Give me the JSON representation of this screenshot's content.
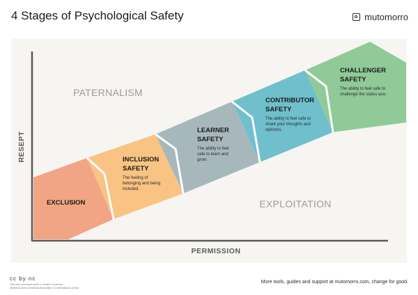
{
  "title": "4 Stages of Psychological Safety",
  "brand": {
    "name": "mutomorro",
    "icon": "square-circle-logo-icon"
  },
  "axes": {
    "y_label": "RESEPT",
    "x_label": "PERMISSION"
  },
  "regions": {
    "top_left": "PATERNALISM",
    "bottom_right": "EXPLOITATION"
  },
  "stages": [
    {
      "title_lines": [
        "EXCLUSION"
      ],
      "desc_lines": [],
      "color": "#f2a585"
    },
    {
      "title_lines": [
        "INCLUSION",
        "SAFETY"
      ],
      "desc_lines": [
        "The feeling of",
        "belonging and being",
        "included."
      ],
      "color": "#f9c383"
    },
    {
      "title_lines": [
        "LEARNER",
        "SAFETY"
      ],
      "desc_lines": [
        "The ability to feel",
        "safe to learn and",
        "grow."
      ],
      "color": "#a7b8bc"
    },
    {
      "title_lines": [
        "CONTRIBUTOR",
        "SAFETY"
      ],
      "desc_lines": [
        "The ability to feel safe to",
        "share your thoughts and",
        "opinions."
      ],
      "color": "#6fbfcd"
    },
    {
      "title_lines": [
        "CHALLENGER",
        "SAFETY"
      ],
      "desc_lines": [
        "The ability to feel safe to",
        "challenge the status quo."
      ],
      "color": "#8fca98"
    }
  ],
  "footer": {
    "cc_badge": "cc by nc",
    "license_lines": [
      "This work is licensed under a Creative Commons",
      "Attribution-NonCommercial-ShareAlike 4.0 International License."
    ],
    "right": "More tools, guides and support at mutomorro.com, change for good."
  }
}
